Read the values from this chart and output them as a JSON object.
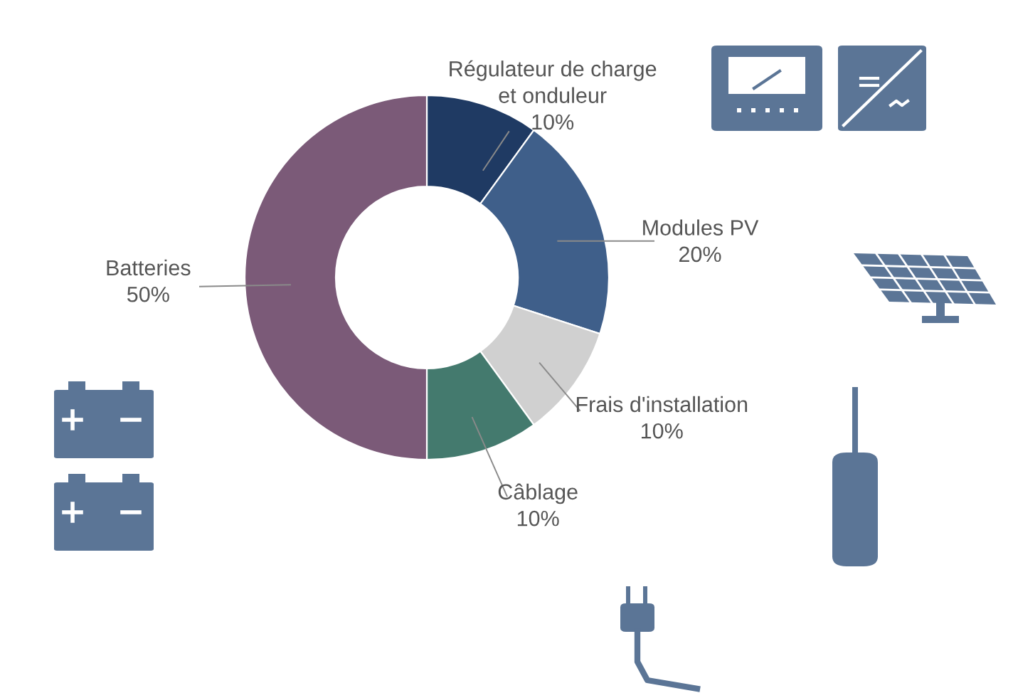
{
  "chart_data": {
    "type": "donut",
    "categories": [
      "Régulateur de charge\net onduleur",
      "Modules PV",
      "Frais d'installation",
      "Câblage",
      "Batteries"
    ],
    "values": [
      10,
      20,
      10,
      10,
      50
    ],
    "value_labels": [
      "10%",
      "20%",
      "10%",
      "10%",
      "50%"
    ],
    "colors": [
      "#1f3a63",
      "#3f5f8a",
      "#d0d0d0",
      "#447a6e",
      "#7b5a78"
    ],
    "legend": false
  }
}
